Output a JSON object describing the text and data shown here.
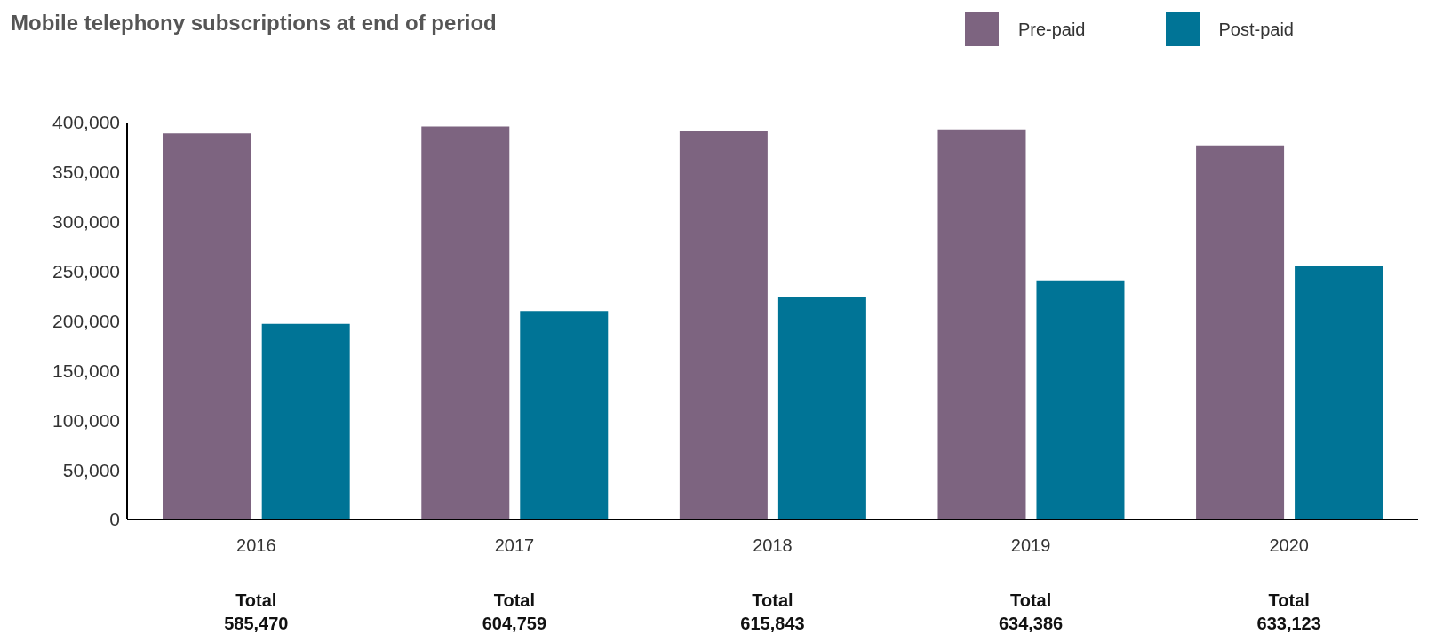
{
  "chart_data": {
    "type": "bar",
    "title": "Mobile telephony subscriptions at end of period",
    "categories": [
      "2016",
      "2017",
      "2018",
      "2019",
      "2020"
    ],
    "series": [
      {
        "name": "Pre-paid",
        "color": "#7d6480",
        "values": [
          389000,
          396000,
          391000,
          393000,
          377000
        ]
      },
      {
        "name": "Post-paid",
        "color": "#007496",
        "values": [
          197000,
          210000,
          224000,
          241000,
          256000
        ]
      }
    ],
    "annotations": [
      "Total\n585,470",
      "Total\n604,759",
      "Total\n615,843",
      "Total\n634,386",
      "Total\n633,123"
    ],
    "ylim": [
      0,
      400000
    ],
    "yticks": [
      {
        "value": 0,
        "label": "0"
      },
      {
        "value": 50000,
        "label": "50,000"
      },
      {
        "value": 100000,
        "label": "100,000"
      },
      {
        "value": 150000,
        "label": "150,000"
      },
      {
        "value": 200000,
        "label": "200,000"
      },
      {
        "value": 250000,
        "label": "250,000"
      },
      {
        "value": 300000,
        "label": "300,000"
      },
      {
        "value": 350000,
        "label": "350,000"
      },
      {
        "value": 400000,
        "label": "400,000"
      }
    ],
    "grid": false,
    "legend": "top right"
  }
}
